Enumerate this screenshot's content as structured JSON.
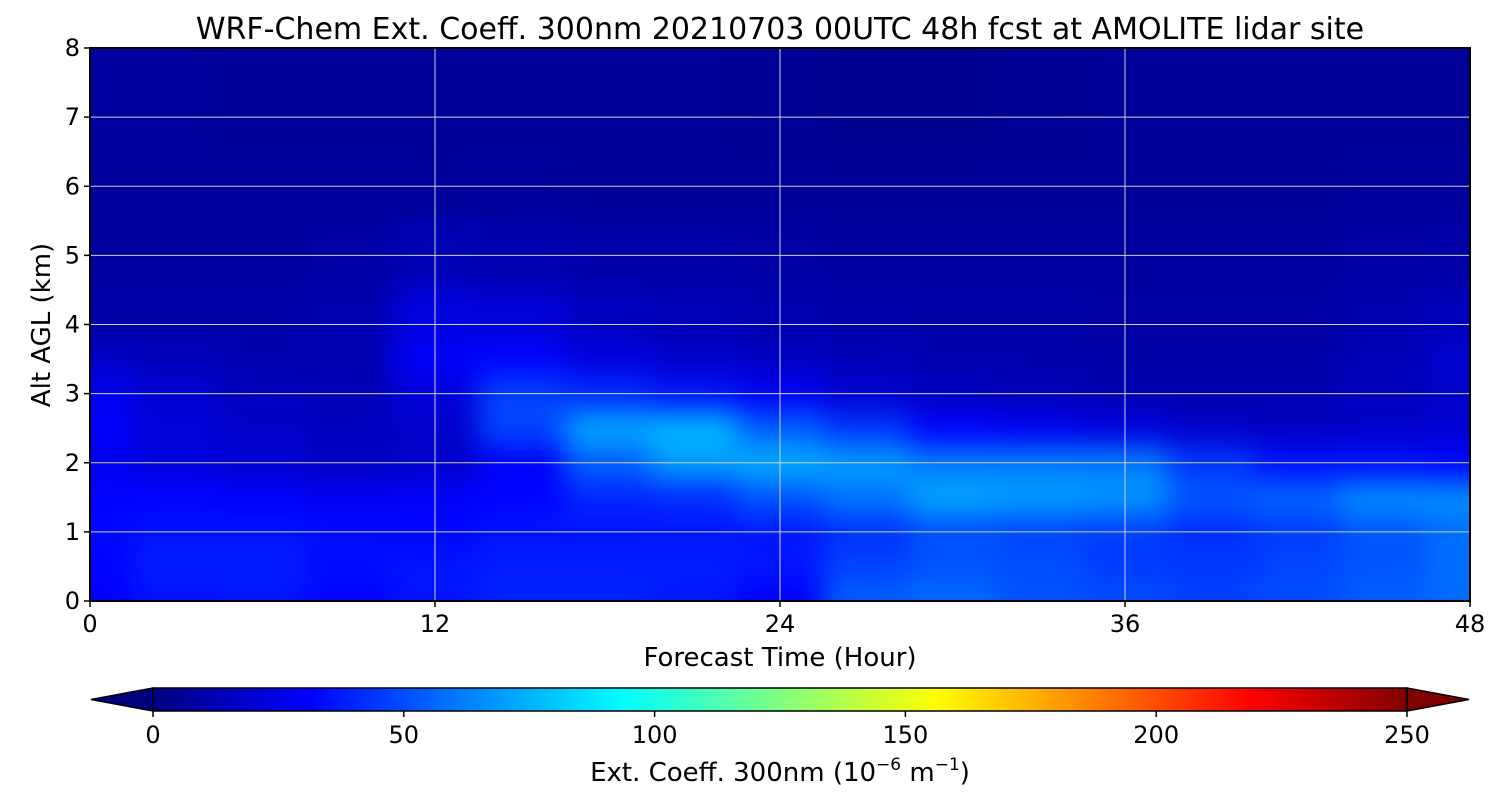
{
  "chart_data": {
    "type": "heatmap",
    "title": "WRF-Chem Ext. Coeff. 300nm  20210703 00UTC 48h fcst at AMOLITE lidar site",
    "xlabel": "Forecast Time (Hour)",
    "ylabel": "Alt AGL (km)",
    "xlim": [
      0,
      48
    ],
    "ylim": [
      0,
      8
    ],
    "x_ticks": [
      0,
      12,
      24,
      36,
      48
    ],
    "y_ticks": [
      0,
      1,
      2,
      3,
      4,
      5,
      6,
      7,
      8
    ],
    "grid": true,
    "colormap": "jet",
    "colorbar": {
      "label_main": "Ext. Coeff. 300nm  (10",
      "label_exp1": "−6",
      "label_unit": " m",
      "label_exp2": "−1",
      "label_close": ")",
      "range": [
        0,
        250
      ],
      "ticks": [
        0,
        50,
        100,
        150,
        200,
        250
      ],
      "extend": "both",
      "under_color": "#00007f",
      "over_color": "#7f0000"
    },
    "x": [
      0,
      3,
      6,
      9,
      12,
      15,
      18,
      21,
      24,
      27,
      30,
      33,
      36,
      39,
      42,
      45,
      48
    ],
    "y": [
      0,
      0.5,
      1,
      1.5,
      2,
      2.5,
      3,
      3.5,
      4,
      5,
      6,
      7,
      8
    ],
    "z": [
      [
        30,
        35,
        36,
        32,
        36,
        40,
        40,
        37,
        30,
        55,
        58,
        52,
        50,
        48,
        50,
        55,
        58
      ],
      [
        32,
        38,
        38,
        34,
        36,
        38,
        38,
        38,
        36,
        48,
        52,
        50,
        46,
        45,
        48,
        52,
        58
      ],
      [
        33,
        36,
        36,
        34,
        33,
        36,
        36,
        36,
        37,
        43,
        50,
        48,
        46,
        42,
        46,
        52,
        58
      ],
      [
        32,
        32,
        30,
        28,
        30,
        32,
        40,
        42,
        52,
        60,
        72,
        70,
        68,
        52,
        56,
        66,
        66
      ],
      [
        27,
        23,
        20,
        16,
        18,
        30,
        55,
        70,
        74,
        70,
        62,
        62,
        62,
        45,
        35,
        35,
        32
      ],
      [
        30,
        22,
        18,
        16,
        18,
        48,
        72,
        76,
        55,
        45,
        32,
        28,
        24,
        18,
        16,
        18,
        20
      ],
      [
        28,
        20,
        15,
        13,
        22,
        48,
        42,
        36,
        30,
        20,
        16,
        14,
        12,
        12,
        12,
        15,
        18
      ],
      [
        18,
        15,
        12,
        12,
        30,
        32,
        24,
        18,
        16,
        14,
        12,
        11,
        10,
        10,
        10,
        14,
        20
      ],
      [
        10,
        10,
        10,
        12,
        24,
        22,
        16,
        14,
        12,
        11,
        10,
        10,
        9,
        9,
        9,
        12,
        15
      ],
      [
        8,
        8,
        8,
        9,
        13,
        12,
        10,
        10,
        9,
        8,
        8,
        8,
        8,
        8,
        8,
        9,
        10
      ],
      [
        7,
        7,
        7,
        7,
        7,
        7,
        6,
        6,
        6,
        6,
        6,
        6,
        6,
        6,
        6,
        7,
        7
      ],
      [
        8,
        7,
        6,
        6,
        6,
        6,
        6,
        6,
        5,
        4,
        4,
        5,
        6,
        6,
        6,
        6,
        6
      ],
      [
        8,
        7,
        6,
        6,
        6,
        6,
        6,
        6,
        5,
        4,
        4,
        5,
        6,
        6,
        6,
        6,
        6
      ]
    ]
  }
}
